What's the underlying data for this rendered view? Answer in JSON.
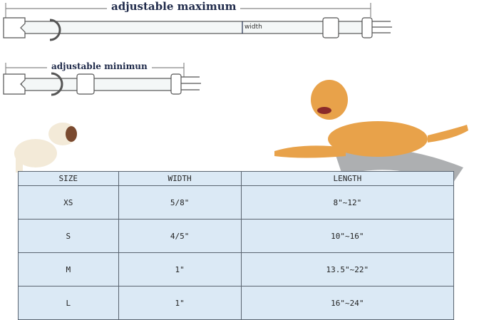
{
  "diagram": {
    "max_label": "adjustable maximum",
    "min_label": "adjustable minimun",
    "width_label": "width"
  },
  "table": {
    "headers": [
      "SIZE",
      "WIDTH",
      "LENGTH"
    ],
    "rows": [
      [
        "XS",
        "5/8\"",
        "8\"~12\""
      ],
      [
        "S",
        "4/5\"",
        "10\"~16\""
      ],
      [
        "M",
        "1\"",
        "13.5\"~22\""
      ],
      [
        "L",
        "1\"",
        "16\"~24\""
      ]
    ]
  },
  "colors": {
    "table_bg": "#dbe9f5",
    "title": "#1f2a4a",
    "dog": "#e8a24a"
  }
}
